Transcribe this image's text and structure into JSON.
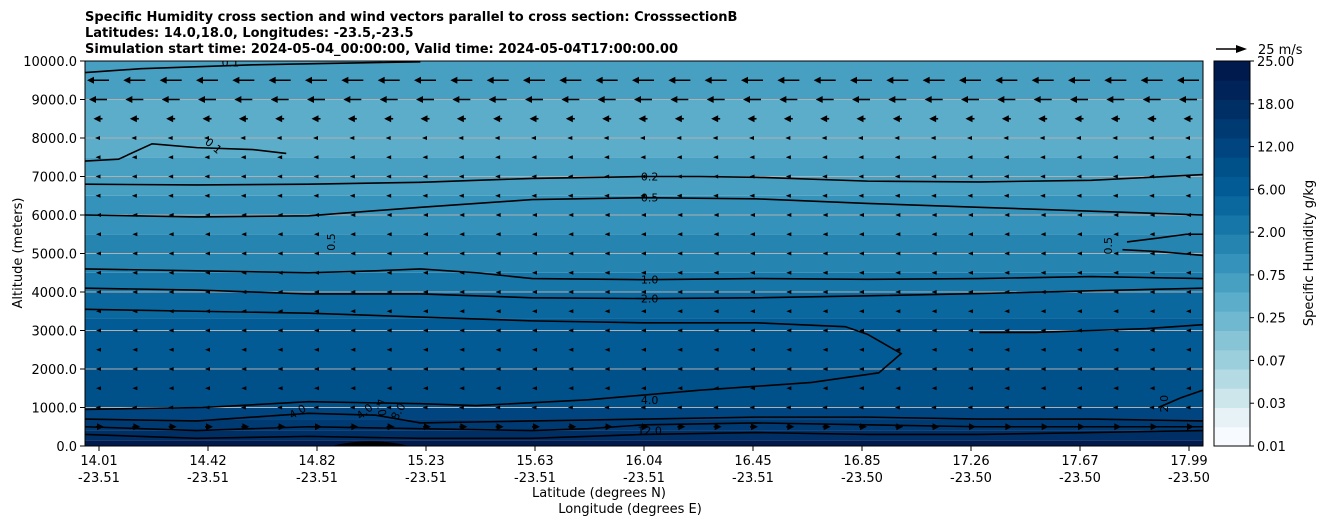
{
  "chart_data": {
    "type": "contour",
    "title_lines": [
      "Specific Humidity cross section and wind vectors parallel to cross section: CrosssectionB",
      "Latitudes: 14.0,18.0, Longitudes: -23.5,-23.5",
      "Simulation start time: 2024-05-04_00:00:00, Valid time: 2024-05-04T17:00:00.00"
    ],
    "xlabel_lines": [
      "Latitude (degrees N)",
      "Longitude (degrees E)"
    ],
    "ylabel": "Altitude (meters)",
    "ylim": [
      0,
      10000
    ],
    "grid": "horizontal",
    "x_ticks": [
      {
        "lat": "14.01",
        "lon": "-23.51"
      },
      {
        "lat": "14.42",
        "lon": "-23.51"
      },
      {
        "lat": "14.82",
        "lon": "-23.51"
      },
      {
        "lat": "15.23",
        "lon": "-23.51"
      },
      {
        "lat": "15.63",
        "lon": "-23.51"
      },
      {
        "lat": "16.04",
        "lon": "-23.51"
      },
      {
        "lat": "16.45",
        "lon": "-23.51"
      },
      {
        "lat": "16.85",
        "lon": "-23.50"
      },
      {
        "lat": "17.26",
        "lon": "-23.50"
      },
      {
        "lat": "17.67",
        "lon": "-23.50"
      },
      {
        "lat": "17.99",
        "lon": "-23.50"
      }
    ],
    "y_ticks": [
      0,
      1000,
      2000,
      3000,
      4000,
      5000,
      6000,
      7000,
      8000,
      9000,
      10000
    ],
    "y_tick_labels": [
      "0.0",
      "1000.0",
      "2000.0",
      "3000.0",
      "4000.0",
      "5000.0",
      "6000.0",
      "7000.0",
      "8000.0",
      "9000.0",
      "10000.0"
    ],
    "colorbar": {
      "label": "Specific Humidity g/kg",
      "tick_labels": [
        "0.01",
        "0.03",
        "0.07",
        "0.25",
        "0.75",
        "2.00",
        "6.00",
        "12.00",
        "18.00",
        "25.00"
      ],
      "colors": [
        "#f7fbff",
        "#e6f2f5",
        "#cde6ec",
        "#b4dae4",
        "#9ccfdc",
        "#86c4d6",
        "#70b8d0",
        "#5cadca",
        "#479fc2",
        "#3592ba",
        "#2684b1",
        "#1776a8",
        "#0b689f",
        "#035b95",
        "#00508a",
        "#00457f",
        "#003a73",
        "#002f66",
        "#00245a",
        "#001a4e"
      ]
    },
    "vector_key": {
      "label": "25 m/s",
      "speed": 25
    },
    "contour_labels": [
      "0.1",
      "0.1",
      "0.2",
      "0.5",
      "0.5",
      "0.5",
      "1.0",
      "2.0",
      "2.0",
      "4.0",
      "4.0",
      "4.0",
      "4.0",
      "8.0",
      "12.0"
    ],
    "contours": [
      {
        "level": "0.1",
        "points": [
          [
            0,
            9700
          ],
          [
            0.05,
            9800
          ],
          [
            0.15,
            9900
          ],
          [
            0.3,
            9980
          ]
        ]
      },
      {
        "level": "0.1",
        "points": [
          [
            0,
            7400
          ],
          [
            0.03,
            7450
          ],
          [
            0.06,
            7850
          ],
          [
            0.1,
            7750
          ],
          [
            0.15,
            7700
          ],
          [
            0.18,
            7600
          ]
        ]
      },
      {
        "level": "0.2",
        "points": [
          [
            0,
            6800
          ],
          [
            0.1,
            6780
          ],
          [
            0.2,
            6800
          ],
          [
            0.3,
            6850
          ],
          [
            0.4,
            6950
          ],
          [
            0.5,
            7000
          ],
          [
            0.55,
            7000
          ],
          [
            0.6,
            6980
          ],
          [
            0.7,
            6880
          ],
          [
            0.8,
            6860
          ],
          [
            0.9,
            6900
          ],
          [
            1,
            7050
          ]
        ]
      },
      {
        "level": "0.5",
        "points": [
          [
            0,
            6000
          ],
          [
            0.1,
            5950
          ],
          [
            0.2,
            5980
          ],
          [
            0.3,
            6200
          ],
          [
            0.4,
            6400
          ],
          [
            0.5,
            6450
          ],
          [
            0.6,
            6420
          ],
          [
            0.7,
            6300
          ],
          [
            0.8,
            6200
          ],
          [
            0.9,
            6100
          ],
          [
            1,
            6000
          ]
        ]
      },
      {
        "level": "0.5",
        "points": [
          [
            0.932,
            5300
          ],
          [
            0.96,
            5400
          ],
          [
            0.985,
            5500
          ],
          [
            1,
            5500
          ]
        ]
      },
      {
        "level": "0.5",
        "points": [
          [
            0.928,
            5100
          ],
          [
            0.96,
            5050
          ],
          [
            1,
            4950
          ]
        ]
      },
      {
        "level": "1.0",
        "points": [
          [
            0,
            4600
          ],
          [
            0.1,
            4550
          ],
          [
            0.2,
            4500
          ],
          [
            0.26,
            4550
          ],
          [
            0.3,
            4600
          ],
          [
            0.35,
            4500
          ],
          [
            0.4,
            4350
          ],
          [
            0.5,
            4320
          ],
          [
            0.6,
            4350
          ],
          [
            0.7,
            4330
          ],
          [
            0.8,
            4350
          ],
          [
            0.9,
            4400
          ],
          [
            1,
            4350
          ]
        ]
      },
      {
        "level": "2.0",
        "points": [
          [
            0,
            4100
          ],
          [
            0.1,
            4050
          ],
          [
            0.2,
            3950
          ],
          [
            0.3,
            3950
          ],
          [
            0.4,
            3850
          ],
          [
            0.5,
            3830
          ],
          [
            0.6,
            3850
          ],
          [
            0.7,
            3900
          ],
          [
            0.8,
            3960
          ],
          [
            0.9,
            4030
          ],
          [
            1,
            4100
          ]
        ]
      },
      {
        "level": "2.0",
        "points": [
          [
            0,
            3550
          ],
          [
            0.1,
            3500
          ],
          [
            0.2,
            3450
          ],
          [
            0.3,
            3350
          ],
          [
            0.4,
            3250
          ],
          [
            0.5,
            3200
          ],
          [
            0.6,
            3200
          ],
          [
            0.68,
            3100
          ],
          [
            0.7,
            2900
          ],
          [
            0.73,
            2400
          ],
          [
            0.71,
            1900
          ],
          [
            0.65,
            1650
          ],
          [
            0.55,
            1450
          ],
          [
            0.45,
            1200
          ],
          [
            0.35,
            1050
          ],
          [
            0.3,
            1100
          ],
          [
            0.2,
            1150
          ],
          [
            0.105,
            1000
          ],
          [
            0,
            950
          ]
        ]
      },
      {
        "level": "2.0",
        "points": [
          [
            1,
            3150
          ],
          [
            0.95,
            3050
          ],
          [
            0.9,
            3000
          ],
          [
            0.85,
            2950
          ],
          [
            0.8,
            2950
          ]
        ]
      },
      {
        "level": "2.0",
        "points": [
          [
            0.96,
            1000
          ],
          [
            0.98,
            1250
          ],
          [
            1,
            1450
          ]
        ]
      },
      {
        "level": "4.0",
        "points": [
          [
            0,
            700
          ],
          [
            0.1,
            650
          ],
          [
            0.2,
            850
          ],
          [
            0.26,
            800
          ],
          [
            0.3,
            600
          ],
          [
            0.4,
            650
          ],
          [
            0.5,
            700
          ],
          [
            0.6,
            750
          ],
          [
            0.7,
            750
          ],
          [
            0.8,
            700
          ],
          [
            0.9,
            700
          ],
          [
            1,
            650
          ]
        ]
      },
      {
        "level": "8.0",
        "points": [
          [
            0,
            500
          ],
          [
            0.1,
            400
          ],
          [
            0.2,
            500
          ],
          [
            0.3,
            450
          ],
          [
            0.4,
            400
          ],
          [
            0.45,
            450
          ],
          [
            0.5,
            550
          ],
          [
            0.6,
            600
          ],
          [
            0.7,
            550
          ],
          [
            0.8,
            500
          ],
          [
            0.9,
            500
          ],
          [
            1,
            500
          ]
        ]
      },
      {
        "level": "12.0",
        "points": [
          [
            0,
            300
          ],
          [
            0.1,
            200
          ],
          [
            0.2,
            250
          ],
          [
            0.3,
            200
          ],
          [
            0.4,
            200
          ],
          [
            0.5,
            300
          ],
          [
            0.6,
            350
          ],
          [
            0.7,
            300
          ],
          [
            0.8,
            300
          ],
          [
            0.9,
            350
          ],
          [
            1,
            400
          ]
        ]
      }
    ]
  }
}
